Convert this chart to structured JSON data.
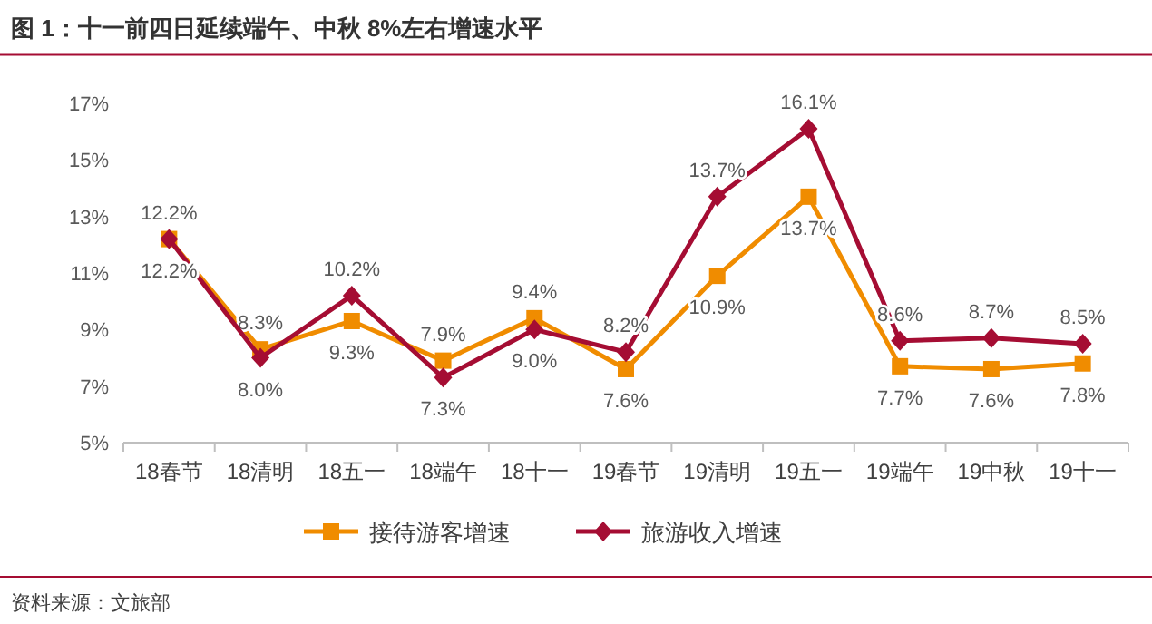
{
  "chart_data": {
    "type": "line",
    "title": "图 1：十一前四日延续端午、中秋 8%左右增速水平",
    "categories": [
      "18春节",
      "18清明",
      "18五一",
      "18端午",
      "18十一",
      "19春节",
      "19清明",
      "19五一",
      "19端午",
      "19中秋",
      "19十一"
    ],
    "series": [
      {
        "name": "接待游客增速",
        "color": "#f08c00",
        "marker": "square",
        "values": [
          12.2,
          8.3,
          9.3,
          7.9,
          9.4,
          7.6,
          10.9,
          13.7,
          7.7,
          7.6,
          7.8
        ],
        "value_labels": [
          "12.2%",
          "8.3%",
          "9.3%",
          "7.9%",
          "9.4%",
          "7.6%",
          "10.9%",
          "13.7%",
          "7.7%",
          "7.6%",
          "7.8%"
        ]
      },
      {
        "name": "旅游收入增速",
        "color": "#a50d33",
        "marker": "diamond",
        "values": [
          12.2,
          8.0,
          10.2,
          7.3,
          9.0,
          8.2,
          13.7,
          16.1,
          8.6,
          8.7,
          8.5
        ],
        "value_labels": [
          "12.2%",
          "8.0%",
          "10.2%",
          "7.3%",
          "9.0%",
          "8.2%",
          "13.7%",
          "16.1%",
          "8.6%",
          "8.7%",
          "8.5%"
        ]
      }
    ],
    "ylim": [
      5,
      17
    ],
    "yticks": [
      {
        "value": 5,
        "label": "5%"
      },
      {
        "value": 7,
        "label": "7%"
      },
      {
        "value": 9,
        "label": "9%"
      },
      {
        "value": 11,
        "label": "11%"
      },
      {
        "value": 13,
        "label": "13%"
      },
      {
        "value": 15,
        "label": "15%"
      },
      {
        "value": 17,
        "label": "17%"
      }
    ],
    "grid": false,
    "legend": "bottom",
    "line_style": "solid",
    "annotations": [
      "资料来源：文旅部"
    ]
  }
}
